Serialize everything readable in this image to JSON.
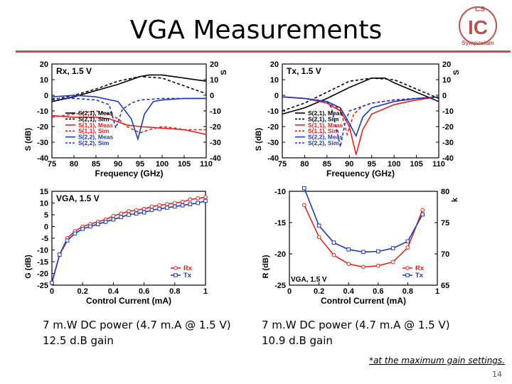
{
  "slide": {
    "title": "VGA Measurements",
    "logo": {
      "top_text": "CS",
      "letters": "IC",
      "arc_text": "Symposium"
    },
    "captions": [
      [
        "7 m.W DC power (4.7 m.A @ 1.5 V)",
        "12.5 d.B gain"
      ],
      [
        "7 m.W DC power (4.7 m.A @ 1.5 V)",
        "10.9 d.B gain"
      ]
    ],
    "footnote": "*at the maximum gain settings.",
    "page_number": "14",
    "colors": {
      "accent": "#c0504d",
      "meas_black": "#000000",
      "red": "#e3201b",
      "blue": "#1f3ab5"
    }
  },
  "chart_data": [
    {
      "type": "line",
      "panel": "Rx, 1.5 V",
      "xlabel": "Frequency (GHz)",
      "ylabel": "S (dB)",
      "y2label": "S",
      "xlim": [
        75,
        110
      ],
      "ylim": [
        -40,
        20
      ],
      "y2lim": [
        -40,
        20
      ],
      "xticks": [
        75,
        80,
        85,
        90,
        95,
        100,
        105,
        110
      ],
      "yticks": [
        -40,
        -30,
        -20,
        -10,
        0,
        10,
        20
      ],
      "y2ticks": [
        "-40",
        "-30",
        "-20",
        "-10",
        "0",
        "10",
        "20"
      ],
      "legend": [
        {
          "name": "S(2,1), Meas",
          "color": "#000000",
          "dash": false
        },
        {
          "name": "S(2,1), Sim",
          "color": "#000000",
          "dash": true
        },
        {
          "name": "S(1,1), Meas",
          "color": "#e3201b",
          "dash": false
        },
        {
          "name": "S(1,1), Sim",
          "color": "#e3201b",
          "dash": true
        },
        {
          "name": "S(2,2), Meas",
          "color": "#1f3ab5",
          "dash": false
        },
        {
          "name": "S(2,2), Sim",
          "color": "#1f3ab5",
          "dash": true
        }
      ],
      "series": [
        {
          "name": "S(2,1), Meas",
          "color": "#000000",
          "dash": false,
          "x": [
            75,
            80,
            85,
            90,
            95,
            97,
            100,
            105,
            110
          ],
          "y": [
            -4,
            -1,
            3,
            7,
            12,
            13,
            13,
            11,
            9
          ]
        },
        {
          "name": "S(2,1), Sim",
          "color": "#000000",
          "dash": true,
          "x": [
            75,
            80,
            85,
            90,
            95,
            100,
            105,
            110
          ],
          "y": [
            -3,
            0,
            4,
            9,
            12,
            11,
            6,
            1
          ]
        },
        {
          "name": "S(1,1), Meas",
          "color": "#e3201b",
          "dash": false,
          "x": [
            75,
            80,
            85,
            88,
            90,
            92,
            95,
            100,
            105,
            110
          ],
          "y": [
            -13,
            -14,
            -14,
            -15,
            -17,
            -19,
            -20,
            -21,
            -22,
            -25
          ]
        },
        {
          "name": "S(1,1), Sim",
          "color": "#e3201b",
          "dash": true,
          "x": [
            75,
            80,
            85,
            88,
            90,
            92,
            95,
            97,
            100,
            103,
            105,
            110
          ],
          "y": [
            -14,
            -12,
            -10,
            -12,
            -15,
            -20,
            -24,
            -22,
            -20,
            -21,
            -22,
            -22
          ]
        },
        {
          "name": "S(2,2), Meas",
          "color": "#1f3ab5",
          "dash": false,
          "x": [
            75,
            80,
            85,
            90,
            93,
            94.5,
            96,
            98,
            100,
            105,
            110
          ],
          "y": [
            -1,
            0,
            -1,
            -4,
            -15,
            -28,
            -12,
            -4,
            -3,
            -2,
            -2
          ]
        },
        {
          "name": "S(2,2), Sim",
          "color": "#1f3ab5",
          "dash": true,
          "x": [
            75,
            80,
            85,
            88,
            89.5,
            91,
            93,
            95,
            100,
            105,
            110
          ],
          "y": [
            -2,
            -2,
            -3,
            -6,
            -21,
            -9,
            -5,
            -3,
            -2,
            -2,
            -2
          ]
        }
      ]
    },
    {
      "type": "line",
      "panel": "Tx, 1.5 V",
      "xlabel": "Frequency (GHz)",
      "ylabel": "S (dB)",
      "y2label": "S",
      "xlim": [
        75,
        110
      ],
      "ylim": [
        -40,
        20
      ],
      "y2lim": [
        -40,
        20
      ],
      "xticks": [
        75,
        80,
        85,
        90,
        95,
        100,
        105,
        110
      ],
      "yticks": [
        -40,
        -30,
        -20,
        -10,
        0,
        10,
        20
      ],
      "y2ticks": [
        "-40",
        "-30",
        "-20",
        "-10",
        "0",
        "10",
        "20"
      ],
      "legend": [
        {
          "name": "S(2,1), Meas",
          "color": "#000000",
          "dash": false
        },
        {
          "name": "S(2,1), Sim",
          "color": "#000000",
          "dash": true
        },
        {
          "name": "S(1,1), Meas",
          "color": "#e3201b",
          "dash": false
        },
        {
          "name": "S(1,1), Sim",
          "color": "#e3201b",
          "dash": true
        },
        {
          "name": "S(2,2), Meas",
          "color": "#1f3ab5",
          "dash": false
        },
        {
          "name": "S(2,2), Sim",
          "color": "#1f3ab5",
          "dash": true
        }
      ],
      "series": [
        {
          "name": "S(2,1), Meas",
          "color": "#000000",
          "dash": false,
          "x": [
            75,
            80,
            85,
            90,
            95,
            98,
            100,
            105,
            110
          ],
          "y": [
            -12,
            -8,
            -2,
            5,
            11,
            11,
            8,
            2,
            -4
          ]
        },
        {
          "name": "S(2,1), Sim",
          "color": "#000000",
          "dash": true,
          "x": [
            75,
            80,
            85,
            90,
            95,
            100,
            105,
            110
          ],
          "y": [
            -10,
            -5,
            2,
            9,
            11,
            10,
            4,
            -2
          ]
        },
        {
          "name": "S(1,1), Meas",
          "color": "#e3201b",
          "dash": false,
          "x": [
            75,
            80,
            85,
            88,
            90,
            91.5,
            93,
            95,
            100,
            105,
            110
          ],
          "y": [
            -1,
            -2,
            -5,
            -10,
            -20,
            -38,
            -22,
            -12,
            -6,
            -3,
            -1
          ]
        },
        {
          "name": "S(1,1), Sim",
          "color": "#e3201b",
          "dash": true,
          "x": [
            75,
            80,
            85,
            88,
            89.5,
            91,
            93,
            95,
            100,
            105,
            110
          ],
          "y": [
            -1,
            -2,
            -4,
            -9,
            -25,
            -12,
            -7,
            -5,
            -3,
            -2,
            -1
          ]
        },
        {
          "name": "S(2,2), Meas",
          "color": "#1f3ab5",
          "dash": false,
          "x": [
            75,
            80,
            85,
            88,
            90,
            91.5,
            93,
            95,
            100,
            105,
            110
          ],
          "y": [
            -1,
            -2,
            -4,
            -8,
            -18,
            -26,
            -14,
            -8,
            -4,
            -2,
            -1
          ]
        },
        {
          "name": "S(2,2), Sim",
          "color": "#1f3ab5",
          "dash": true,
          "x": [
            75,
            80,
            85,
            86,
            87,
            88,
            89,
            90,
            95,
            100,
            105,
            110
          ],
          "y": [
            -1,
            -2,
            -4,
            -8,
            -20,
            -33,
            -18,
            -10,
            -5,
            -3,
            -2,
            -1
          ]
        }
      ]
    },
    {
      "type": "line",
      "panel": "VGA, 1.5 V",
      "xlabel": "Control Current (mA)",
      "ylabel": "G (dB)",
      "xlim": [
        0,
        1
      ],
      "ylim": [
        -25,
        15
      ],
      "xticks": [
        "0",
        "0.2",
        "0.4",
        "0.6",
        "0.8",
        "1"
      ],
      "yticks": [
        -25,
        -20,
        -15,
        -10,
        -5,
        0,
        5,
        10,
        15
      ],
      "legend": [
        {
          "name": "Rx",
          "color": "#e3201b",
          "marker": "circle"
        },
        {
          "name": "Tx",
          "color": "#1f3ab5",
          "marker": "square"
        }
      ],
      "series": [
        {
          "name": "Rx",
          "color": "#e3201b",
          "marker": "circle",
          "x": [
            0,
            0.05,
            0.1,
            0.15,
            0.2,
            0.25,
            0.3,
            0.35,
            0.4,
            0.45,
            0.5,
            0.55,
            0.6,
            0.65,
            0.7,
            0.75,
            0.8,
            0.85,
            0.9,
            0.95,
            1.0
          ],
          "y": [
            -24,
            -12,
            -5,
            -2,
            0,
            1,
            2,
            3,
            4.5,
            5.5,
            6.5,
            7,
            7.5,
            8.5,
            9,
            9.5,
            10,
            10.5,
            11.5,
            12,
            12.5
          ]
        },
        {
          "name": "Tx",
          "color": "#1f3ab5",
          "marker": "square",
          "x": [
            0,
            0.05,
            0.1,
            0.15,
            0.2,
            0.25,
            0.3,
            0.35,
            0.4,
            0.45,
            0.5,
            0.55,
            0.6,
            0.65,
            0.7,
            0.75,
            0.8,
            0.85,
            0.9,
            0.95,
            1.0
          ],
          "y": [
            -24,
            -12,
            -6,
            -3,
            -1,
            0,
            1,
            2,
            3,
            4,
            5,
            5.5,
            6,
            7,
            7.5,
            8,
            8.5,
            9,
            9.5,
            10,
            10.9
          ]
        }
      ]
    },
    {
      "type": "line",
      "panel": "",
      "xlabel": "Control Current (mA)",
      "ylabel": "R (dB)",
      "y2label": "k",
      "xlim": [
        0,
        1
      ],
      "ylim": [
        -25,
        -10
      ],
      "y2lim": [
        65,
        80
      ],
      "xticks": [
        "0",
        "0.2",
        "0.4",
        "0.6",
        "0.8",
        "1"
      ],
      "yticks": [
        -25,
        -20,
        -15,
        -10
      ],
      "y2ticks": [
        "65",
        "70",
        "75",
        "80"
      ],
      "overlay_text": "VGA, 1.5 V",
      "legend": [
        {
          "name": "Rx",
          "color": "#e3201b",
          "marker": "circle"
        },
        {
          "name": "Tx",
          "color": "#1f3ab5",
          "marker": "square"
        }
      ],
      "series": [
        {
          "name": "Rx",
          "color": "#e3201b",
          "marker": "circle",
          "x": [
            0.1,
            0.2,
            0.3,
            0.4,
            0.5,
            0.6,
            0.7,
            0.8,
            0.9
          ],
          "y": [
            -12.2,
            -17.3,
            -20.2,
            -21.6,
            -22.1,
            -21.9,
            -21.3,
            -19.0,
            -13.0
          ]
        },
        {
          "name": "Tx",
          "color": "#1f3ab5",
          "marker": "square",
          "x": [
            0.1,
            0.2,
            0.3,
            0.4,
            0.5,
            0.6,
            0.7,
            0.8,
            0.9
          ],
          "y": [
            -9.5,
            -15.5,
            -18.2,
            -19.3,
            -19.7,
            -19.6,
            -19.1,
            -18.0,
            -13.7
          ]
        }
      ]
    }
  ]
}
